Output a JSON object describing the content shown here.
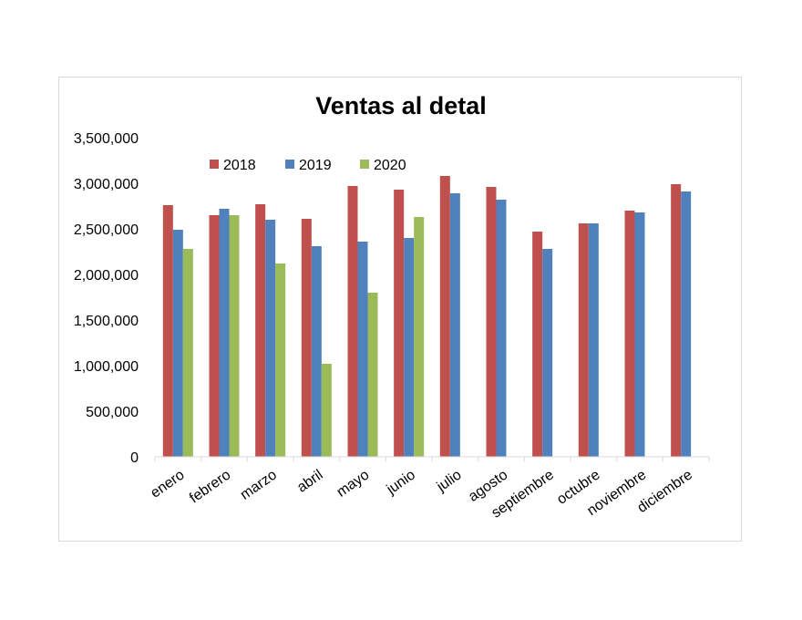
{
  "chart_data": {
    "type": "bar",
    "title": "Ventas al detal",
    "xlabel": "",
    "ylabel": "",
    "ylim": [
      0,
      3500000
    ],
    "yticks": [
      0,
      500000,
      1000000,
      1500000,
      2000000,
      2500000,
      3000000,
      3500000
    ],
    "ytick_labels": [
      "0",
      "500,000",
      "1,000,000",
      "1,500,000",
      "2,000,000",
      "2,500,000",
      "3,000,000",
      "3,500,000"
    ],
    "grid": false,
    "legend_position": "top",
    "categories": [
      "enero",
      "febrero",
      "marzo",
      "abril",
      "mayo",
      "junio",
      "julio",
      "agosto",
      "septiembre",
      "octubre",
      "noviembre",
      "diciembre"
    ],
    "series": [
      {
        "name": "2018",
        "color": "#c0504d",
        "values": [
          2760000,
          2650000,
          2770000,
          2610000,
          2970000,
          2930000,
          3080000,
          2960000,
          2470000,
          2560000,
          2700000,
          2990000
        ]
      },
      {
        "name": "2019",
        "color": "#4f81bd",
        "values": [
          2490000,
          2720000,
          2600000,
          2310000,
          2360000,
          2400000,
          2890000,
          2820000,
          2280000,
          2560000,
          2680000,
          2910000
        ]
      },
      {
        "name": "2020",
        "color": "#9bbb59",
        "values": [
          2280000,
          2650000,
          2120000,
          1020000,
          1800000,
          2630000,
          null,
          null,
          null,
          null,
          null,
          null
        ]
      }
    ]
  }
}
